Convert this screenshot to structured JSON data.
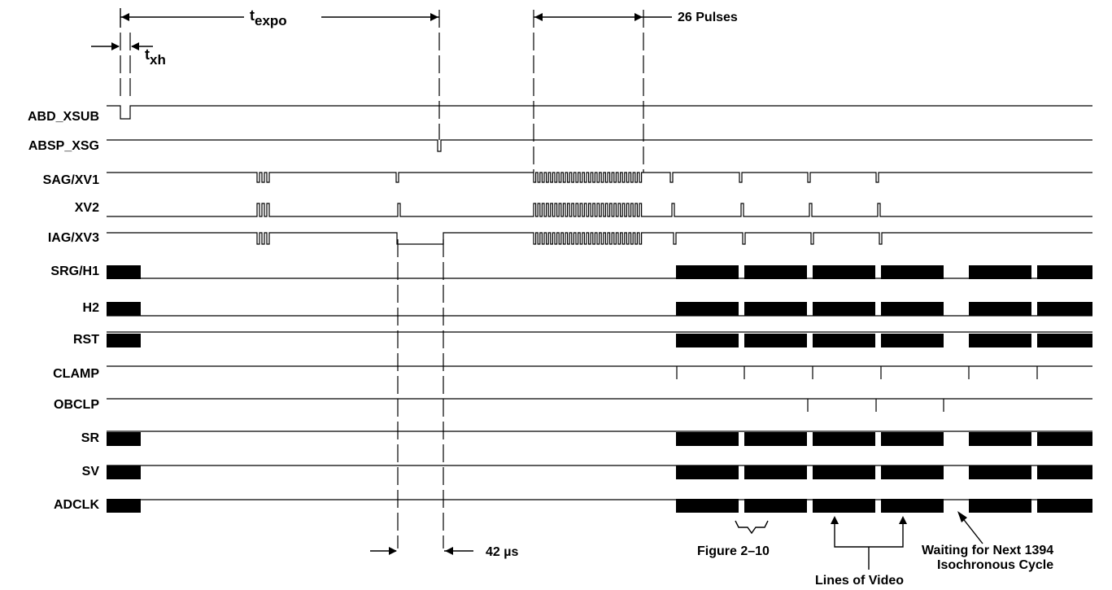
{
  "annotations": {
    "t_expo_base": "t",
    "t_expo_sub": "expo",
    "t_xh_base": "t",
    "t_xh_sub": "xh",
    "pulses": "26 Pulses",
    "delay": "42 µs",
    "figure_ref": "Figure 2–10",
    "lines_of_video": "Lines of Video",
    "waiting_line1": "Waiting for Next 1394",
    "waiting_line2": "Isochronous Cycle"
  },
  "signals": [
    {
      "key": "abd_xsub",
      "label": "ABD_XSUB"
    },
    {
      "key": "absp_xsg",
      "label": "ABSP_XSG"
    },
    {
      "key": "sag_xv1",
      "label": "SAG/XV1"
    },
    {
      "key": "xv2",
      "label": "XV2"
    },
    {
      "key": "iag_xv3",
      "label": "IAG/XV3"
    },
    {
      "key": "srg_h1",
      "label": "SRG/H1"
    },
    {
      "key": "h2",
      "label": "H2"
    },
    {
      "key": "rst",
      "label": "RST"
    },
    {
      "key": "clamp",
      "label": "CLAMP"
    },
    {
      "key": "obclp",
      "label": "OBCLP"
    },
    {
      "key": "sr",
      "label": "SR"
    },
    {
      "key": "sv",
      "label": "SV"
    },
    {
      "key": "adclk",
      "label": "ADCLK"
    }
  ],
  "colors": {
    "ink": "#000000",
    "background": "#ffffff"
  }
}
